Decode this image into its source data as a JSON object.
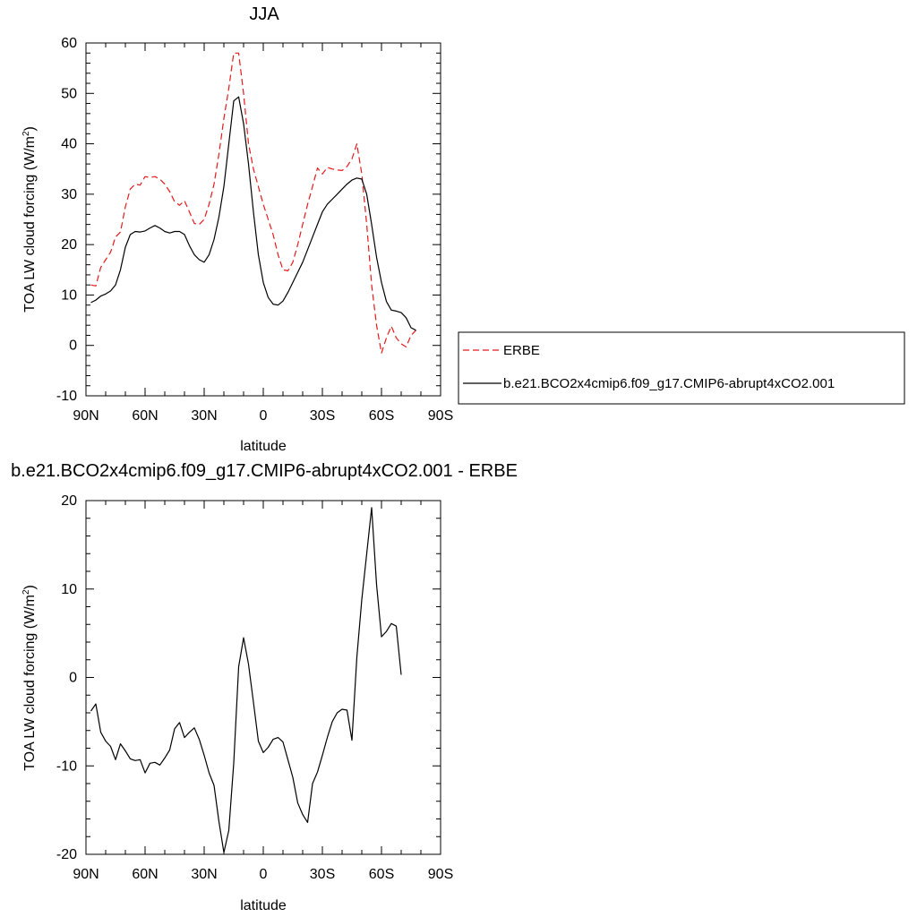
{
  "chart_data": [
    {
      "type": "line",
      "title": "JJA",
      "xlabel": "latitude",
      "ylabel": "TOA LW cloud forcing (W/m",
      "ylabel_sup": "2",
      "ylabel_close": ")",
      "xlim": [
        90,
        -90
      ],
      "ylim": [
        -10,
        60
      ],
      "x_ticks": [
        90,
        60,
        30,
        0,
        -30,
        -60,
        -90
      ],
      "x_tick_labels": [
        "90N",
        "60N",
        "30N",
        "0",
        "30S",
        "60S",
        "90S"
      ],
      "y_ticks": [
        -10,
        0,
        10,
        20,
        30,
        40,
        50,
        60
      ],
      "y_tick_labels": [
        "-10",
        "0",
        "10",
        "20",
        "30",
        "40",
        "50",
        "60"
      ],
      "legend_position": "right",
      "series": [
        {
          "name": "ERBE",
          "color": "#e31a1c",
          "dash": "dashed",
          "points": [
            [
              87.5,
              12
            ],
            [
              85,
              11.8
            ],
            [
              82.5,
              15.5
            ],
            [
              80,
              17
            ],
            [
              77.5,
              18.5
            ],
            [
              75,
              21.5
            ],
            [
              72.5,
              22.5
            ],
            [
              70,
              27.5
            ],
            [
              67.5,
              31
            ],
            [
              65,
              32
            ],
            [
              62.5,
              31.8
            ],
            [
              60,
              33.5
            ],
            [
              57.5,
              33.3
            ],
            [
              55,
              33.5
            ],
            [
              52.5,
              33
            ],
            [
              50,
              32
            ],
            [
              47.5,
              30.5
            ],
            [
              45,
              28.5
            ],
            [
              42.5,
              27.8
            ],
            [
              40,
              28.7
            ],
            [
              37.5,
              26.5
            ],
            [
              35,
              24.2
            ],
            [
              32.5,
              24
            ],
            [
              30,
              25
            ],
            [
              27.5,
              28
            ],
            [
              25,
              32
            ],
            [
              22.5,
              38
            ],
            [
              20,
              45
            ],
            [
              17.5,
              51
            ],
            [
              15,
              58
            ],
            [
              12.5,
              58
            ],
            [
              10,
              50
            ],
            [
              7.5,
              40
            ],
            [
              5,
              35
            ],
            [
              2.5,
              31.5
            ],
            [
              0,
              28
            ],
            [
              -2.5,
              25
            ],
            [
              -5,
              22
            ],
            [
              -7.5,
              18
            ],
            [
              -10,
              15
            ],
            [
              -12.5,
              14.8
            ],
            [
              -15,
              16.5
            ],
            [
              -17.5,
              20
            ],
            [
              -20,
              24
            ],
            [
              -22.5,
              28
            ],
            [
              -25,
              31.5
            ],
            [
              -27.5,
              35.2
            ],
            [
              -30,
              34
            ],
            [
              -32.5,
              35.3
            ],
            [
              -35,
              35
            ],
            [
              -37.5,
              34.8
            ],
            [
              -40,
              34.7
            ],
            [
              -42.5,
              35.5
            ],
            [
              -45,
              37
            ],
            [
              -47.5,
              40
            ],
            [
              -50,
              34
            ],
            [
              -52.5,
              24
            ],
            [
              -55,
              12
            ],
            [
              -57.5,
              4
            ],
            [
              -60,
              -1.5
            ],
            [
              -62.5,
              1.5
            ],
            [
              -65,
              3.8
            ],
            [
              -67.5,
              1.5
            ],
            [
              -70,
              0.3
            ],
            [
              -72.5,
              -0.3
            ],
            [
              -75,
              2
            ],
            [
              -77.5,
              3
            ]
          ]
        },
        {
          "name": "b.e21.BCO2x4cmip6.f09_g17.CMIP6-abrupt4xCO2.001",
          "color": "#000000",
          "dash": "solid",
          "points": [
            [
              87.5,
              8.5
            ],
            [
              85,
              9
            ],
            [
              82.5,
              9.8
            ],
            [
              80,
              10.2
            ],
            [
              77.5,
              10.8
            ],
            [
              75,
              12
            ],
            [
              72.5,
              15
            ],
            [
              70,
              19.5
            ],
            [
              67.5,
              22
            ],
            [
              65,
              22.6
            ],
            [
              62.5,
              22.5
            ],
            [
              60,
              22.7
            ],
            [
              57.5,
              23.3
            ],
            [
              55,
              23.8
            ],
            [
              52.5,
              23.3
            ],
            [
              50,
              22.6
            ],
            [
              47.5,
              22.3
            ],
            [
              45,
              22.6
            ],
            [
              42.5,
              22.6
            ],
            [
              40,
              22
            ],
            [
              37.5,
              19.8
            ],
            [
              35,
              18
            ],
            [
              32.5,
              17
            ],
            [
              30,
              16.5
            ],
            [
              27.5,
              18
            ],
            [
              25,
              21
            ],
            [
              22.5,
              25.5
            ],
            [
              20,
              31.5
            ],
            [
              17.5,
              40
            ],
            [
              15,
              48.5
            ],
            [
              12.5,
              49.3
            ],
            [
              10,
              44
            ],
            [
              7.5,
              36
            ],
            [
              5,
              26.5
            ],
            [
              2.5,
              18
            ],
            [
              0,
              12.5
            ],
            [
              -2.5,
              9.5
            ],
            [
              -5,
              8.2
            ],
            [
              -7.5,
              8
            ],
            [
              -10,
              8.8
            ],
            [
              -12.5,
              10.5
            ],
            [
              -15,
              12.5
            ],
            [
              -17.5,
              14.5
            ],
            [
              -20,
              16.5
            ],
            [
              -22.5,
              19
            ],
            [
              -25,
              21.5
            ],
            [
              -27.5,
              24
            ],
            [
              -30,
              26.5
            ],
            [
              -32.5,
              28
            ],
            [
              -35,
              29
            ],
            [
              -37.5,
              30
            ],
            [
              -40,
              31
            ],
            [
              -42.5,
              32
            ],
            [
              -45,
              32.8
            ],
            [
              -47.5,
              33.2
            ],
            [
              -50,
              33
            ],
            [
              -52.5,
              30
            ],
            [
              -55,
              24
            ],
            [
              -57.5,
              17.5
            ],
            [
              -60,
              12.5
            ],
            [
              -62.5,
              8.7
            ],
            [
              -65,
              7
            ],
            [
              -67.5,
              6.8
            ],
            [
              -70,
              6.5
            ],
            [
              -72.5,
              5.5
            ],
            [
              -75,
              3.5
            ],
            [
              -77.5,
              3
            ]
          ]
        }
      ]
    },
    {
      "type": "line",
      "title": "b.e21.BCO2x4cmip6.f09_g17.CMIP6-abrupt4xCO2.001 - ERBE",
      "xlabel": "latitude",
      "ylabel": "TOA LW cloud forcing (W/m",
      "ylabel_sup": "2",
      "ylabel_close": ")",
      "xlim": [
        90,
        -90
      ],
      "ylim": [
        -20,
        20
      ],
      "x_ticks": [
        90,
        60,
        30,
        0,
        -30,
        -60,
        -90
      ],
      "x_tick_labels": [
        "90N",
        "60N",
        "30N",
        "0",
        "30S",
        "60S",
        "90S"
      ],
      "y_ticks": [
        -20,
        -10,
        0,
        10,
        20
      ],
      "y_tick_labels": [
        "-20",
        "-10",
        "0",
        "10",
        "20"
      ],
      "series": [
        {
          "color": "#000000",
          "dash": "solid",
          "points": [
            [
              87.5,
              -3.8
            ],
            [
              85,
              -3
            ],
            [
              82.5,
              -6.2
            ],
            [
              80,
              -7.2
            ],
            [
              77.5,
              -7.8
            ],
            [
              75,
              -9.3
            ],
            [
              72.5,
              -7.5
            ],
            [
              70,
              -8.3
            ],
            [
              67.5,
              -9.2
            ],
            [
              65,
              -9.4
            ],
            [
              62.5,
              -9.3
            ],
            [
              60,
              -10.8
            ],
            [
              57.5,
              -9.7
            ],
            [
              55,
              -9.6
            ],
            [
              52.5,
              -9.9
            ],
            [
              50,
              -9.1
            ],
            [
              47.5,
              -8.2
            ],
            [
              45,
              -5.8
            ],
            [
              42.5,
              -5.1
            ],
            [
              40,
              -6.8
            ],
            [
              37.5,
              -6.2
            ],
            [
              35,
              -5.7
            ],
            [
              32.5,
              -7
            ],
            [
              30,
              -8.8
            ],
            [
              27.5,
              -10.8
            ],
            [
              25,
              -12.2
            ],
            [
              22.5,
              -16.3
            ],
            [
              20,
              -19.8
            ],
            [
              17.5,
              -17.3
            ],
            [
              15,
              -9.7
            ],
            [
              12.5,
              1.2
            ],
            [
              10,
              4.5
            ],
            [
              7.5,
              1.5
            ],
            [
              5,
              -2.8
            ],
            [
              2.5,
              -7.2
            ],
            [
              0,
              -8.5
            ],
            [
              -2.5,
              -7.9
            ],
            [
              -5,
              -7
            ],
            [
              -7.5,
              -6.8
            ],
            [
              -10,
              -7.3
            ],
            [
              -12.5,
              -9.3
            ],
            [
              -15,
              -11.3
            ],
            [
              -17.5,
              -14.2
            ],
            [
              -20,
              -15.5
            ],
            [
              -22.5,
              -16.4
            ],
            [
              -25,
              -12
            ],
            [
              -27.5,
              -10.7
            ],
            [
              -30,
              -8.8
            ],
            [
              -32.5,
              -6.8
            ],
            [
              -35,
              -5
            ],
            [
              -37.5,
              -4
            ],
            [
              -40,
              -3.6
            ],
            [
              -42.5,
              -3.7
            ],
            [
              -45,
              -7.1
            ],
            [
              -47.5,
              2.3
            ],
            [
              -50,
              8.8
            ],
            [
              -52.5,
              14
            ],
            [
              -55,
              19.2
            ],
            [
              -57.5,
              10.5
            ],
            [
              -60,
              4.6
            ],
            [
              -62.5,
              5.2
            ],
            [
              -65,
              6.1
            ],
            [
              -67.5,
              5.8
            ],
            [
              -70,
              0.3
            ]
          ]
        }
      ]
    }
  ]
}
